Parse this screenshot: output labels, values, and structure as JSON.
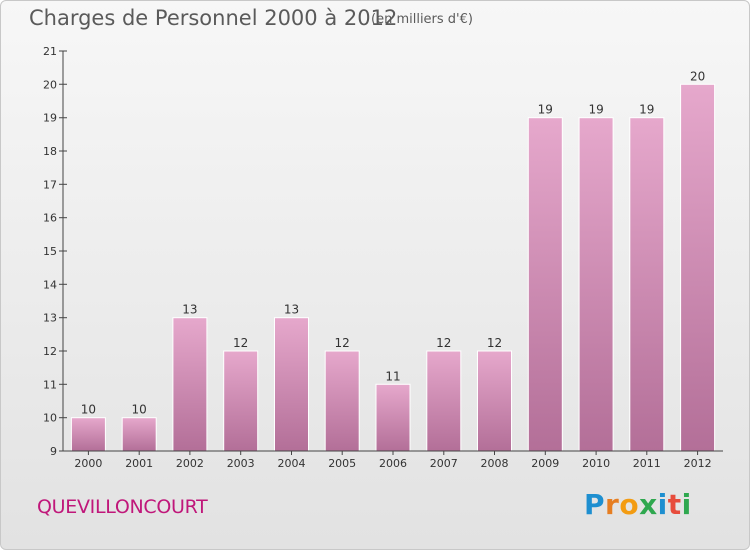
{
  "header": {
    "title": "Charges de Personnel 2000 à 2012",
    "subtitle": "(en milliers d'€)"
  },
  "footer": {
    "commune": "QUEVILLONCOURT",
    "brand": "Proxiti"
  },
  "colors": {
    "bar_top": "#e6a8cc",
    "bar_bottom": "#b36f98",
    "commune_text": "#c0177a",
    "brand_letters": [
      "#1e8fd0",
      "#e67e22",
      "#f39c12",
      "#2fa84f",
      "#1e8fd0",
      "#e74c3c",
      "#2fa84f"
    ]
  },
  "chart_data": {
    "type": "bar",
    "title": "Charges de Personnel 2000 à 2012",
    "subtitle": "(en milliers d'€)",
    "categories": [
      "2000",
      "2001",
      "2002",
      "2003",
      "2004",
      "2005",
      "2006",
      "2007",
      "2008",
      "2009",
      "2010",
      "2011",
      "2012"
    ],
    "values": [
      10,
      10,
      13,
      12,
      13,
      12,
      11,
      12,
      12,
      19,
      19,
      19,
      20
    ],
    "ylim": [
      9,
      21
    ],
    "yticks": [
      "9",
      "10",
      "11",
      "12",
      "13",
      "14",
      "15",
      "16",
      "17",
      "18",
      "19",
      "20",
      "21"
    ],
    "xlabel": "",
    "ylabel": "",
    "grid": false,
    "legend": "none"
  }
}
